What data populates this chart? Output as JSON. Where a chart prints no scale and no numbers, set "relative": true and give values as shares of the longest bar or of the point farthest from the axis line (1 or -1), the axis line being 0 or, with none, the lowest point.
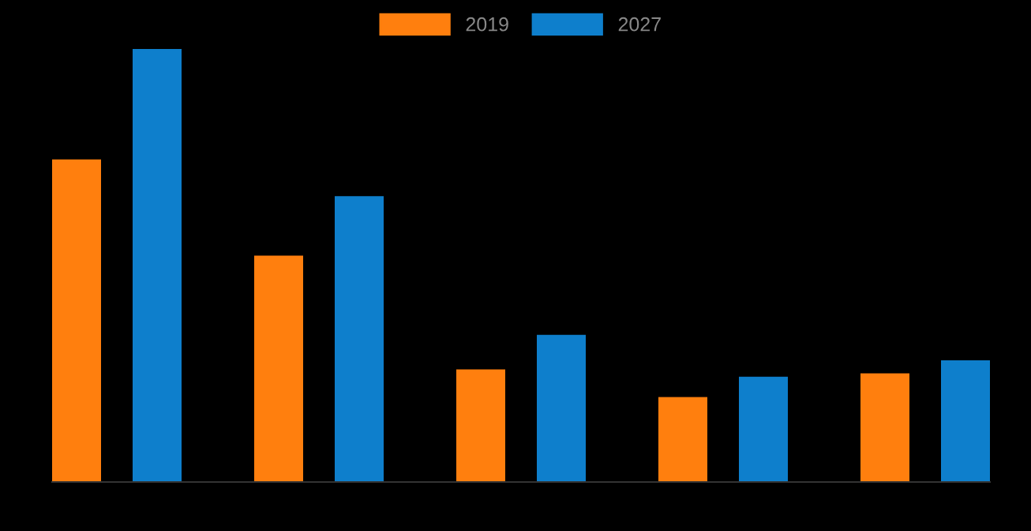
{
  "chart_data": {
    "type": "bar",
    "relative": true,
    "categories": [
      null,
      null,
      null,
      null,
      null
    ],
    "series": [
      {
        "name": "2019",
        "color": "#ff7f0e",
        "values": [
          0.745,
          0.523,
          0.26,
          0.196,
          0.251
        ]
      },
      {
        "name": "2027",
        "color": "#0e7fcc",
        "values": [
          1,
          0.66,
          0.34,
          0.243,
          0.281
        ]
      }
    ],
    "legend": "top",
    "grid": false
  }
}
